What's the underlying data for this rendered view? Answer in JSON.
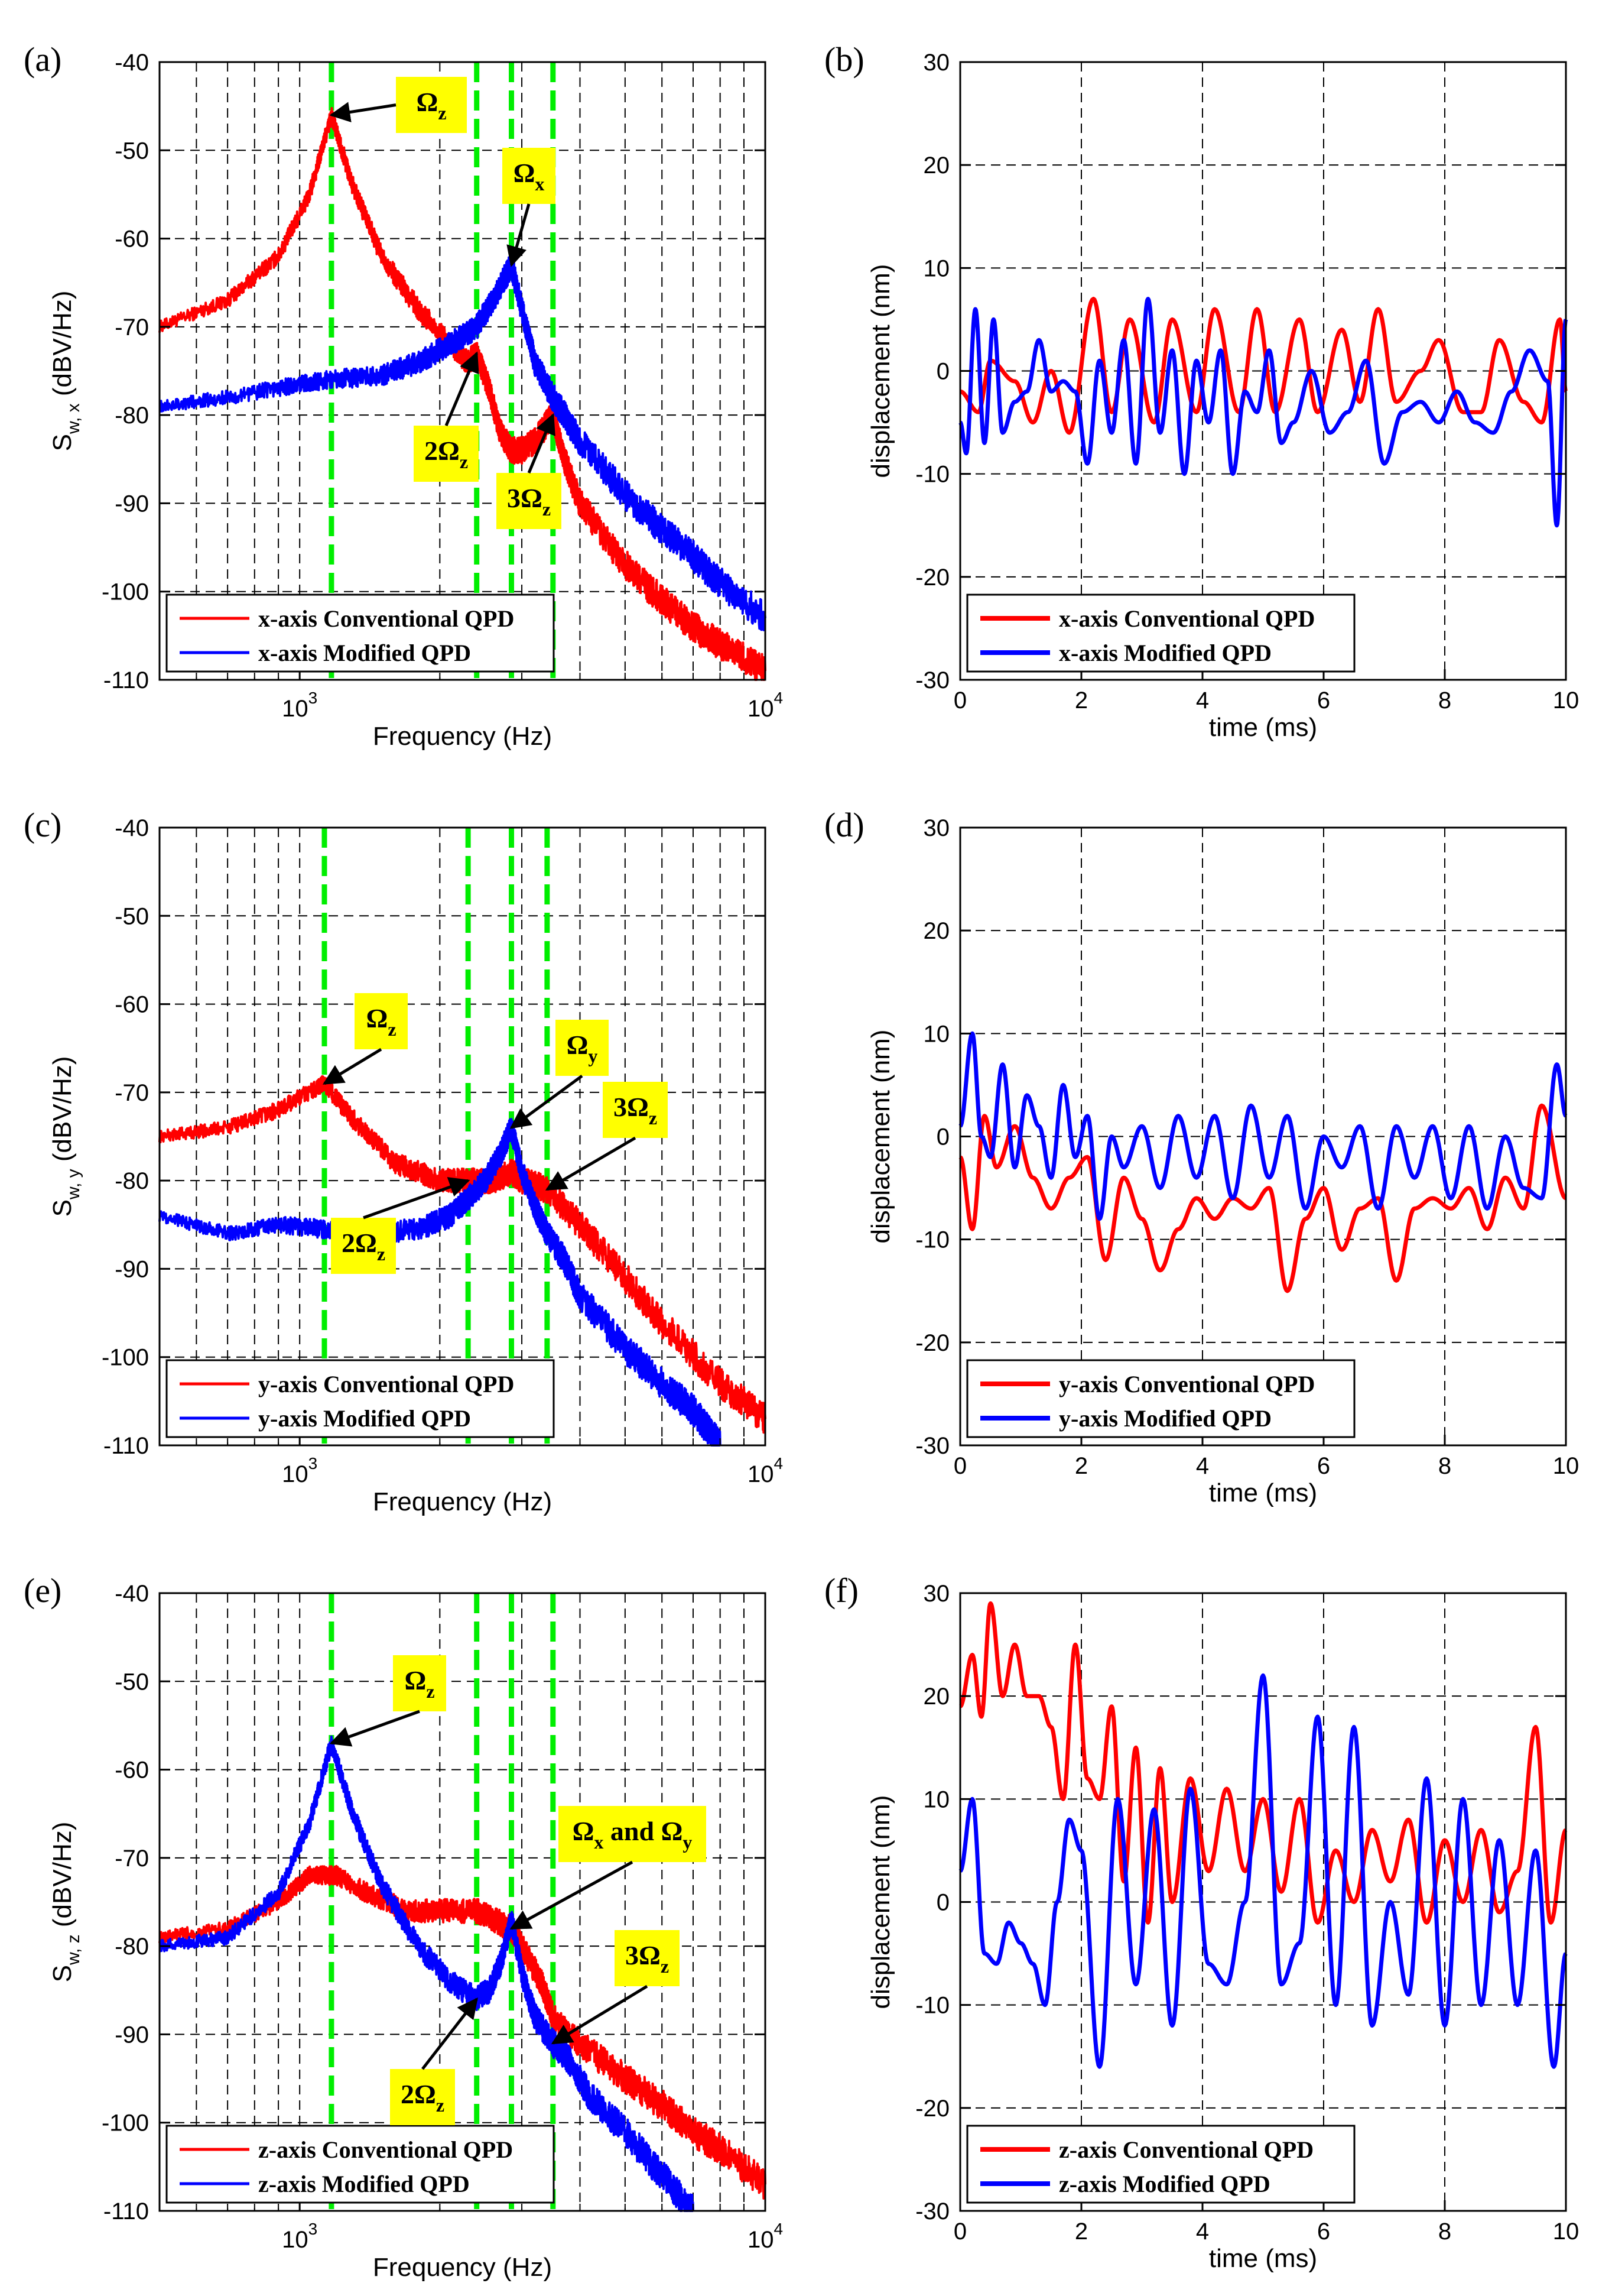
{
  "colors": {
    "conventional": "#ff0000",
    "modified": "#0000ff",
    "marker": "#00ee00",
    "annotation_bg": "#ffff00",
    "grid": "#000000"
  },
  "chart_data": [
    {
      "panel": "(a)",
      "type": "line",
      "xscale": "log",
      "xlabel": "Frequency (Hz)",
      "ylabel": "S_{w, x} (dBV/Hz)",
      "ylabel_main": "S",
      "ylabel_sub": "w, x",
      "ylabel_unit": "(dBV/Hz)",
      "xlim": [
        500,
        10000
      ],
      "ylim": [
        -110,
        -40
      ],
      "yticks": [
        -40,
        -50,
        -60,
        -70,
        -80,
        -90,
        -100,
        -110
      ],
      "xtick_labels": [
        {
          "x": 1000,
          "base": "10",
          "exp": "3"
        },
        {
          "x": 10000,
          "base": "10",
          "exp": "4"
        }
      ],
      "legend": "bottom-left",
      "markers": [
        1170,
        2400,
        2850,
        3500
      ],
      "series": [
        {
          "name": "x-axis Conventional QPD",
          "color": "#ff0000",
          "x": [
            500,
            700,
            900,
            1050,
            1170,
            1300,
            1500,
            1800,
            2100,
            2300,
            2400,
            2550,
            2700,
            2850,
            3000,
            3200,
            3500,
            3700,
            4000,
            5000,
            6000,
            7000,
            8000,
            10000
          ],
          "y": [
            -70,
            -67,
            -62,
            -55,
            -46,
            -54,
            -62,
            -68,
            -72,
            -74,
            -73,
            -77,
            -82,
            -84,
            -84,
            -83,
            -80,
            -85,
            -90,
            -97,
            -101,
            -104,
            -106,
            -109
          ]
        },
        {
          "name": "x-axis Modified QPD",
          "color": "#0000ff",
          "x": [
            500,
            700,
            1000,
            1170,
            1500,
            1800,
            2100,
            2400,
            2600,
            2850,
            3000,
            3200,
            3500,
            3700,
            4000,
            5000,
            6000,
            7000,
            8000,
            10000
          ],
          "y": [
            -79,
            -78,
            -76.5,
            -76,
            -75.5,
            -74,
            -72,
            -70,
            -67,
            -63,
            -68,
            -74,
            -78,
            -80,
            -83,
            -89,
            -93,
            -96,
            -99,
            -103
          ]
        }
      ],
      "annotations": [
        {
          "base": "Ω",
          "sub": "z",
          "x": 1170,
          "y": -46
        },
        {
          "base": "Ω",
          "sub": "x",
          "x": 2850,
          "y": -63
        },
        {
          "base": "2Ω",
          "sub": "z",
          "x": 2400,
          "y": -73
        },
        {
          "base": "3Ω",
          "sub": "z",
          "x": 3500,
          "y": -80
        }
      ]
    },
    {
      "panel": "(b)",
      "type": "line",
      "xscale": "linear",
      "xlabel": "time (ms)",
      "ylabel": "displacement (nm)",
      "xlim": [
        0,
        10
      ],
      "ylim": [
        -30,
        30
      ],
      "xticks": [
        0,
        2,
        4,
        6,
        8,
        10
      ],
      "yticks": [
        30,
        20,
        10,
        0,
        -10,
        -20,
        -30
      ],
      "legend": "bottom-left",
      "series": [
        {
          "name": "x-axis Conventional QPD",
          "color": "#ff0000",
          "x": [
            0,
            0.3,
            0.5,
            0.9,
            1.2,
            1.5,
            1.8,
            2.2,
            2.5,
            2.8,
            3.2,
            3.5,
            3.9,
            4.2,
            4.6,
            4.9,
            5.2,
            5.6,
            5.9,
            6.3,
            6.6,
            6.9,
            7.2,
            7.6,
            7.9,
            8.3,
            8.6,
            8.9,
            9.3,
            9.6,
            9.9,
            10
          ],
          "y": [
            -2,
            -4,
            1,
            -1,
            -5,
            0,
            -6,
            7,
            -4,
            5,
            -5,
            5,
            -4,
            6,
            -4,
            6,
            -4,
            5,
            -4,
            4,
            -3,
            6,
            -3,
            0,
            3,
            -4,
            -4,
            3,
            -3,
            -5,
            5,
            -2
          ]
        },
        {
          "name": "x-axis Modified QPD",
          "color": "#0000ff",
          "x": [
            0,
            0.1,
            0.25,
            0.4,
            0.55,
            0.7,
            0.9,
            1.1,
            1.3,
            1.5,
            1.7,
            1.9,
            2.1,
            2.3,
            2.5,
            2.7,
            2.9,
            3.1,
            3.3,
            3.5,
            3.7,
            3.9,
            4.1,
            4.3,
            4.5,
            4.7,
            4.9,
            5.1,
            5.3,
            5.5,
            5.8,
            6.1,
            6.4,
            6.7,
            7.0,
            7.3,
            7.6,
            7.9,
            8.2,
            8.5,
            8.8,
            9.1,
            9.4,
            9.7,
            9.85,
            10
          ],
          "y": [
            -5,
            -8,
            6,
            -7,
            5,
            -6,
            -3,
            -2,
            3,
            -2,
            -1,
            -2,
            -9,
            1,
            -6,
            3,
            -9,
            7,
            -6,
            2,
            -10,
            1,
            -5,
            2,
            -10,
            -2,
            -4,
            2,
            -7,
            -5,
            0,
            -6,
            -4,
            1,
            -9,
            -4,
            -3,
            -5,
            -2,
            -5,
            -6,
            -2,
            2,
            -1,
            -15,
            5
          ]
        }
      ]
    },
    {
      "panel": "(c)",
      "type": "line",
      "xscale": "log",
      "xlabel": "Frequency (Hz)",
      "ylabel": "S_{w, y} (dBV/Hz)",
      "ylabel_main": "S",
      "ylabel_sub": "w, y",
      "ylabel_unit": "(dBV/Hz)",
      "xlim": [
        500,
        10000
      ],
      "ylim": [
        -110,
        -40
      ],
      "yticks": [
        -40,
        -50,
        -60,
        -70,
        -80,
        -90,
        -100,
        -110
      ],
      "xtick_labels": [
        {
          "x": 1000,
          "base": "10",
          "exp": "3"
        },
        {
          "x": 10000,
          "base": "10",
          "exp": "4"
        }
      ],
      "legend": "bottom-left",
      "markers": [
        1130,
        2300,
        2850,
        3400
      ],
      "series": [
        {
          "name": "y-axis Conventional QPD",
          "color": "#ff0000",
          "x": [
            500,
            700,
            900,
            1130,
            1300,
            1600,
            2000,
            2300,
            2600,
            2850,
            3000,
            3400,
            4000,
            5000,
            6000,
            8000,
            10000
          ],
          "y": [
            -75,
            -74,
            -72,
            -69,
            -73,
            -78,
            -80,
            -80,
            -80,
            -79,
            -80,
            -81,
            -85,
            -91,
            -96,
            -103,
            -107
          ]
        },
        {
          "name": "y-axis Modified QPD",
          "color": "#0000ff",
          "x": [
            500,
            700,
            900,
            1130,
            1400,
            1800,
            2100,
            2300,
            2500,
            2700,
            2850,
            3000,
            3200,
            3400,
            3700,
            4000,
            5000,
            6000,
            7000,
            8000
          ],
          "y": [
            -84,
            -86,
            -85,
            -85.5,
            -86,
            -85.5,
            -84,
            -82,
            -80,
            -77,
            -74,
            -79,
            -83,
            -86,
            -89,
            -93,
            -99,
            -103,
            -106,
            -110
          ]
        }
      ],
      "annotations": [
        {
          "base": "Ω",
          "sub": "z",
          "x": 1130,
          "y": -69
        },
        {
          "base": "Ω",
          "sub": "y",
          "x": 2850,
          "y": -74
        },
        {
          "base": "3Ω",
          "sub": "z",
          "x": 3400,
          "y": -81
        },
        {
          "base": "2Ω",
          "sub": "z",
          "x": 2300,
          "y": -80
        }
      ]
    },
    {
      "panel": "(d)",
      "type": "line",
      "xscale": "linear",
      "xlabel": "time (ms)",
      "ylabel": "displacement (nm)",
      "xlim": [
        0,
        10
      ],
      "ylim": [
        -30,
        30
      ],
      "xticks": [
        0,
        2,
        4,
        6,
        8,
        10
      ],
      "yticks": [
        30,
        20,
        10,
        0,
        -10,
        -20,
        -30
      ],
      "legend": "bottom-left",
      "series": [
        {
          "name": "y-axis Conventional QPD",
          "color": "#ff0000",
          "x": [
            0,
            0.2,
            0.4,
            0.6,
            0.9,
            1.2,
            1.5,
            1.8,
            2.1,
            2.4,
            2.7,
            3.0,
            3.3,
            3.6,
            3.9,
            4.2,
            4.5,
            4.8,
            5.1,
            5.4,
            5.7,
            6.0,
            6.3,
            6.6,
            6.9,
            7.2,
            7.5,
            7.8,
            8.1,
            8.4,
            8.7,
            9.0,
            9.3,
            9.6,
            10
          ],
          "y": [
            -2,
            -9,
            2,
            -3,
            1,
            -4,
            -7,
            -4,
            -2,
            -12,
            -4,
            -8,
            -13,
            -9,
            -6,
            -8,
            -6,
            -7,
            -5,
            -15,
            -8,
            -5,
            -11,
            -7,
            -6,
            -14,
            -7,
            -6,
            -7,
            -5,
            -9,
            -4,
            -7,
            3,
            -6
          ]
        },
        {
          "name": "y-axis Modified QPD",
          "color": "#0000ff",
          "x": [
            0,
            0.2,
            0.35,
            0.5,
            0.7,
            0.9,
            1.1,
            1.3,
            1.5,
            1.7,
            1.9,
            2.1,
            2.3,
            2.5,
            2.7,
            3.0,
            3.3,
            3.6,
            3.9,
            4.2,
            4.5,
            4.8,
            5.1,
            5.4,
            5.7,
            6.0,
            6.3,
            6.6,
            6.9,
            7.2,
            7.5,
            7.8,
            8.1,
            8.4,
            8.7,
            9.0,
            9.3,
            9.6,
            9.85,
            10
          ],
          "y": [
            1,
            10,
            0,
            -2,
            7,
            -3,
            4,
            1,
            -4,
            5,
            -2,
            2,
            -8,
            0,
            -3,
            1,
            -5,
            2,
            -4,
            2,
            -6,
            3,
            -4,
            2,
            -7,
            0,
            -3,
            1,
            -7,
            1,
            -4,
            1,
            -6,
            1,
            -7,
            0,
            -5,
            -6,
            7,
            2
          ]
        }
      ]
    },
    {
      "panel": "(e)",
      "type": "line",
      "xscale": "log",
      "xlabel": "Frequency (Hz)",
      "ylabel": "S_{w, z} (dBV/Hz)",
      "ylabel_main": "S",
      "ylabel_sub": "w, z",
      "ylabel_unit": "(dBV/Hz)",
      "xlim": [
        500,
        10000
      ],
      "ylim": [
        -110,
        -40
      ],
      "yticks": [
        -40,
        -50,
        -60,
        -70,
        -80,
        -90,
        -100,
        -110
      ],
      "xtick_labels": [
        {
          "x": 1000,
          "base": "10",
          "exp": "3"
        },
        {
          "x": 10000,
          "base": "10",
          "exp": "4"
        }
      ],
      "legend": "bottom-left",
      "markers": [
        1170,
        2400,
        2850,
        3500
      ],
      "series": [
        {
          "name": "z-axis Conventional QPD",
          "color": "#ff0000",
          "x": [
            500,
            700,
            900,
            1050,
            1200,
            1400,
            1700,
            2000,
            2400,
            2600,
            2850,
            3000,
            3300,
            3500,
            4000,
            5000,
            6000,
            7000,
            8000,
            10000
          ],
          "y": [
            -79,
            -78,
            -75,
            -72,
            -72,
            -74,
            -76,
            -76,
            -76,
            -77,
            -78,
            -80,
            -84,
            -88,
            -91,
            -95,
            -98,
            -101,
            -103,
            -107
          ]
        },
        {
          "name": "z-axis Modified QPD",
          "color": "#0000ff",
          "x": [
            500,
            700,
            900,
            1050,
            1170,
            1300,
            1500,
            1800,
            2100,
            2400,
            2550,
            2700,
            2850,
            3000,
            3200,
            3500,
            3800,
            4200,
            5000,
            6000,
            7000
          ],
          "y": [
            -80,
            -79,
            -74,
            -66,
            -57,
            -65,
            -73,
            -80,
            -84,
            -86,
            -85,
            -82,
            -77,
            -83,
            -88,
            -91,
            -93,
            -97,
            -101,
            -106,
            -110
          ]
        }
      ],
      "annotations": [
        {
          "base": "Ω",
          "sub": "z",
          "x": 1170,
          "y": -57
        },
        {
          "base": "Ω",
          "sub": "x",
          "mid": " and Ω",
          "sub2": "y",
          "x": 2850,
          "y": -78
        },
        {
          "base": "3Ω",
          "sub": "z",
          "x": 3500,
          "y": -91
        },
        {
          "base": "2Ω",
          "sub": "z",
          "x": 2400,
          "y": -86
        }
      ]
    },
    {
      "panel": "(f)",
      "type": "line",
      "xscale": "linear",
      "xlabel": "time (ms)",
      "ylabel": "displacement (nm)",
      "xlim": [
        0,
        10
      ],
      "ylim": [
        -30,
        30
      ],
      "xticks": [
        0,
        2,
        4,
        6,
        8,
        10
      ],
      "yticks": [
        30,
        20,
        10,
        0,
        -10,
        -20,
        -30
      ],
      "legend": "bottom-left",
      "series": [
        {
          "name": "z-axis Conventional QPD",
          "color": "#ff0000",
          "x": [
            0,
            0.2,
            0.35,
            0.5,
            0.7,
            0.9,
            1.1,
            1.3,
            1.5,
            1.7,
            1.9,
            2.1,
            2.3,
            2.5,
            2.7,
            2.9,
            3.1,
            3.3,
            3.5,
            3.8,
            4.1,
            4.4,
            4.7,
            5.0,
            5.3,
            5.6,
            5.9,
            6.2,
            6.5,
            6.8,
            7.1,
            7.4,
            7.7,
            8.0,
            8.3,
            8.6,
            8.9,
            9.2,
            9.5,
            9.75,
            10
          ],
          "y": [
            19,
            24,
            18,
            29,
            20,
            25,
            20,
            20,
            17,
            10,
            25,
            12,
            10,
            19,
            2,
            15,
            -2,
            13,
            0,
            12,
            3,
            11,
            3,
            10,
            1,
            10,
            -2,
            5,
            0,
            7,
            2,
            8,
            -2,
            6,
            0,
            7,
            -1,
            3,
            17,
            -2,
            7
          ]
        },
        {
          "name": "z-axis Modified QPD",
          "color": "#0000ff",
          "x": [
            0,
            0.2,
            0.4,
            0.6,
            0.8,
            1.0,
            1.2,
            1.4,
            1.6,
            1.8,
            2.0,
            2.3,
            2.6,
            2.9,
            3.2,
            3.5,
            3.8,
            4.1,
            4.4,
            4.7,
            5.0,
            5.3,
            5.6,
            5.9,
            6.2,
            6.5,
            6.8,
            7.1,
            7.4,
            7.7,
            8.0,
            8.3,
            8.6,
            8.9,
            9.2,
            9.5,
            9.8,
            10
          ],
          "y": [
            3,
            10,
            -5,
            -6,
            -2,
            -4,
            -6,
            -10,
            0,
            8,
            5,
            -16,
            10,
            -8,
            9,
            -12,
            11,
            -6,
            -8,
            0,
            22,
            -8,
            -4,
            18,
            -10,
            17,
            -12,
            0,
            -9,
            12,
            -12,
            10,
            -10,
            6,
            -10,
            5,
            -16,
            -5
          ]
        }
      ]
    }
  ]
}
